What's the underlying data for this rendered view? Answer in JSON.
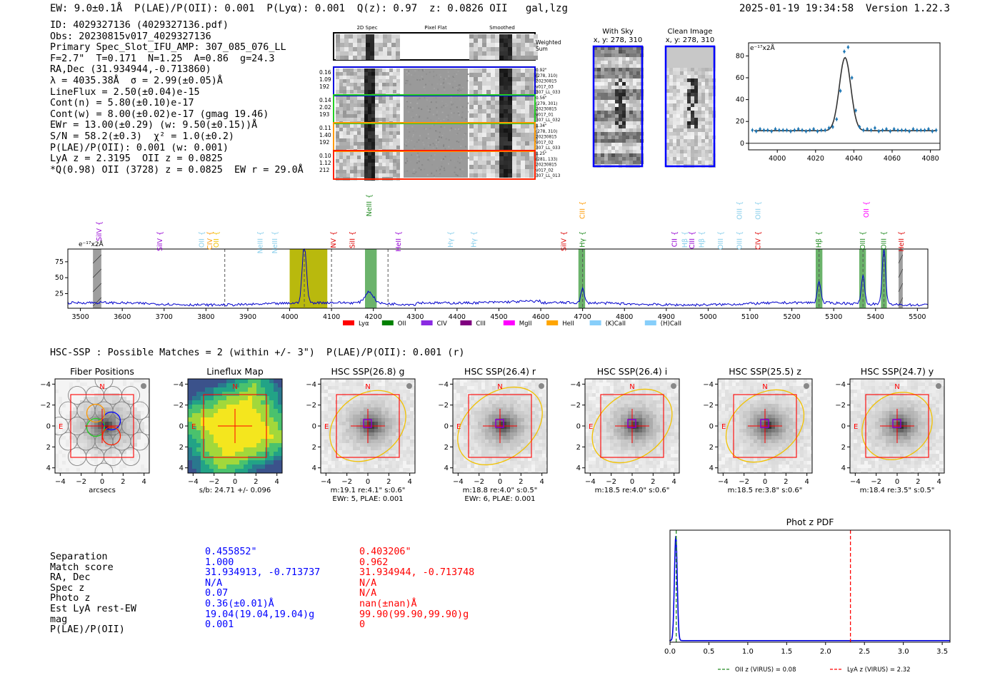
{
  "header": {
    "left": "EW: 9.0±0.1Å  P(LAE)/P(OII): 0.001  P(Lyα): 0.001  Q(z): 0.97  z: 0.0826 OII   gal,lzg",
    "right": "2025-01-19 19:34:58  Version 1.22.3"
  },
  "info_lines": [
    "ID: 4029327136 (4029327136.pdf)",
    "Obs: 20230815v017_4029327136",
    "Primary Spec_Slot_IFU_AMP: 307_085_076_LL",
    "F=2.7\"  T=0.171  N=1.25  A=0.86  g=24.3",
    "RA,Dec (31.934944,-0.713860)",
    "λ = 4035.38Å  σ = 2.99(±0.05)Å",
    "LineFlux = 2.50(±0.04)e-15",
    "Cont(n) = 5.80(±0.10)e-17",
    "Cont(w) = 8.00(±0.02)e-17 (gmag 19.46)",
    "EWr = 13.00(±0.29) (w: 9.50(±0.15))Å",
    "S/N = 58.2(±0.3)  χ² = 1.0(±0.2)",
    "P(LAE)/P(OII): 0.001 (w: 0.001)",
    "LyA z = 2.3195  OII z = 0.0825",
    "*Q(0.98) OII (3728) z = 0.0825  EW r = 29.0Å"
  ],
  "spec_strip": {
    "col_titles": [
      "2D Spec",
      "Pixel Flat",
      "Smoothed"
    ],
    "weighted_label": "Weighted Sum",
    "rows": [
      {
        "left": [
          "0.16",
          "1.09",
          "192"
        ],
        "right": [
          "0.92\"",
          "(278, 310)",
          "20230815",
          "v017_03",
          "307_LL_033"
        ],
        "color": "#0000dd"
      },
      {
        "left": [
          "0.14",
          "2.02",
          "193"
        ],
        "right": [
          "0.56\"",
          "(279, 301)",
          "20230815",
          "v017_01",
          "307_LL_032"
        ],
        "color": "#22cc22"
      },
      {
        "left": [
          "0.11",
          "1.40",
          "192"
        ],
        "right": [
          "1.34\"",
          "(278, 310)",
          "20230815",
          "v017_02",
          "307_LL_033"
        ],
        "color": "#ff9900"
      },
      {
        "left": [
          "0.10",
          "1.12",
          "212"
        ],
        "right": [
          "1.25\"",
          "(281, 133)",
          "20230815",
          "v017_02",
          "307_LL_013"
        ],
        "color": "#ff2200"
      }
    ]
  },
  "cutouts": {
    "sky_title": "With Sky",
    "sky_coords": "x, y: 278, 310",
    "clean_title": "Clean Image",
    "clean_coords": "x, y: 278, 310"
  },
  "colors": {
    "blue": "#0000ff",
    "red": "#ff0000",
    "green": "#228b22",
    "olive": "#b5b500",
    "gold": "#f2c200",
    "fit": "#333333",
    "points": "#1f77b4"
  },
  "chart_data": [
    {
      "id": "line_fit",
      "type": "scatter",
      "title": "",
      "ylabel": "e⁻¹⁷x2Å",
      "xlim": [
        3985,
        4085
      ],
      "ylim": [
        -6,
        92
      ],
      "xticks": [
        4000,
        4020,
        4040,
        4060,
        4080
      ],
      "yticks": [
        0,
        20,
        40,
        60,
        80
      ],
      "fit": {
        "center": 4035.4,
        "sigma": 2.99,
        "amp": 67,
        "cont": 11.5
      },
      "x": [
        3987,
        3989,
        3991,
        3993,
        3995,
        3997,
        3999,
        4001,
        4003,
        4005,
        4007,
        4009,
        4011,
        4013,
        4015,
        4017,
        4019,
        4021,
        4023,
        4025,
        4027,
        4029,
        4031,
        4033,
        4035,
        4037,
        4039,
        4041,
        4043,
        4045,
        4047,
        4049,
        4051,
        4053,
        4055,
        4057,
        4059,
        4061,
        4063,
        4065,
        4067,
        4069,
        4071,
        4073,
        4075,
        4077,
        4079,
        4081,
        4083
      ],
      "y": [
        12,
        11,
        13,
        12,
        12,
        11,
        13,
        12,
        12,
        12,
        11,
        12,
        13,
        12,
        11,
        12,
        13,
        11,
        12,
        12,
        14,
        15,
        22,
        48,
        84,
        88,
        60,
        30,
        15,
        12,
        13,
        12,
        14,
        11,
        12,
        13,
        11,
        13,
        12,
        12,
        12,
        11,
        13,
        12,
        12,
        12,
        13,
        11,
        12
      ]
    },
    {
      "id": "full_spectrum",
      "type": "line",
      "ylabel": "e⁻¹⁷x2Å",
      "xlim": [
        3470,
        5525
      ],
      "ylim": [
        2,
        95
      ],
      "xticks": [
        3500,
        3600,
        3700,
        3800,
        3900,
        4000,
        4100,
        4200,
        4300,
        4400,
        4500,
        4600,
        4700,
        4800,
        4900,
        5000,
        5100,
        5200,
        5300,
        5400,
        5500
      ],
      "yticks": [
        25,
        50,
        75
      ],
      "baseline": 9,
      "peaks": [
        {
          "x": 4035,
          "h": 92,
          "w": 5
        },
        {
          "x": 4190,
          "h": 18,
          "w": 10
        },
        {
          "x": 4700,
          "h": 22,
          "w": 4
        },
        {
          "x": 5265,
          "h": 35,
          "w": 4
        },
        {
          "x": 5370,
          "h": 45,
          "w": 4
        },
        {
          "x": 5420,
          "h": 90,
          "w": 4
        }
      ],
      "bands": [
        {
          "x0": 4000,
          "x1": 4090,
          "color": "olive"
        },
        {
          "x0": 4180,
          "x1": 4208,
          "color": "green"
        },
        {
          "x0": 4690,
          "x1": 4706,
          "color": "green"
        },
        {
          "x0": 5257,
          "x1": 5273,
          "color": "green"
        },
        {
          "x0": 5361,
          "x1": 5377,
          "color": "green"
        },
        {
          "x0": 5413,
          "x1": 5427,
          "color": "green"
        },
        {
          "x0": 3530,
          "x1": 3550,
          "color": "gray"
        },
        {
          "x0": 5455,
          "x1": 5465,
          "color": "gray"
        }
      ],
      "dashes": [
        3845,
        4035,
        4100,
        4235,
        4700,
        5265,
        5370,
        5420
      ],
      "line_labels": [
        {
          "x": 3545,
          "t": "SiIV",
          "c": "#9400d3",
          "lvl": 0
        },
        {
          "x": 3690,
          "t": "SiIV",
          "c": "#9400d3",
          "lvl": 1
        },
        {
          "x": 3790,
          "t": "OII",
          "c": "#87ceeb",
          "lvl": 1
        },
        {
          "x": 3810,
          "t": "CIV",
          "c": "#ff9900",
          "lvl": 1
        },
        {
          "x": 3825,
          "t": "OII",
          "c": "#f2c200",
          "lvl": 1
        },
        {
          "x": 3930,
          "t": "NeIII",
          "c": "#87ceeb",
          "lvl": 1
        },
        {
          "x": 3965,
          "t": "NeIII",
          "c": "#87ceeb",
          "lvl": 1
        },
        {
          "x": 4105,
          "t": "NV",
          "c": "#dd0000",
          "lvl": 1
        },
        {
          "x": 4150,
          "t": "SiII",
          "c": "#dd0000",
          "lvl": 1
        },
        {
          "x": 4190,
          "t": "NeIII",
          "c": "#228b22",
          "lvl": 3
        },
        {
          "x": 4260,
          "t": "HeII",
          "c": "#9400d3",
          "lvl": 1
        },
        {
          "x": 4385,
          "t": "Hγ",
          "c": "#87ceeb",
          "lvl": 1
        },
        {
          "x": 4440,
          "t": "Hγ",
          "c": "#87ceeb",
          "lvl": 1
        },
        {
          "x": 4655,
          "t": "SiIV",
          "c": "#dd0000",
          "lvl": 1
        },
        {
          "x": 4700,
          "t": "Hγ",
          "c": "#228b22",
          "lvl": 1
        },
        {
          "x": 4700,
          "t": "CIII",
          "c": "#ff9900",
          "lvl": 2
        },
        {
          "x": 4920,
          "t": "CII",
          "c": "#9400d3",
          "lvl": 1
        },
        {
          "x": 4945,
          "t": "Hβ",
          "c": "#87ceeb",
          "lvl": 1
        },
        {
          "x": 4962,
          "t": "CIII",
          "c": "#9400d3",
          "lvl": 1
        },
        {
          "x": 4985,
          "t": "Hβ",
          "c": "#87ceeb",
          "lvl": 1
        },
        {
          "x": 5030,
          "t": "OIII",
          "c": "#87ceeb",
          "lvl": 1
        },
        {
          "x": 5075,
          "t": "OIII",
          "c": "#87ceeb",
          "lvl": 1
        },
        {
          "x": 5075,
          "t": "OIII",
          "c": "#87ceeb",
          "lvl": 2
        },
        {
          "x": 5120,
          "t": "OIII",
          "c": "#87ceeb",
          "lvl": 2
        },
        {
          "x": 5120,
          "t": "CIV",
          "c": "#dd0000",
          "lvl": 1
        },
        {
          "x": 5265,
          "t": "Hβ",
          "c": "#228b22",
          "lvl": 1
        },
        {
          "x": 5370,
          "t": "OIII",
          "c": "#228b22",
          "lvl": 1
        },
        {
          "x": 5378,
          "t": "OII",
          "c": "#ff00ff",
          "lvl": 2
        },
        {
          "x": 5420,
          "t": "OIII",
          "c": "#228b22",
          "lvl": 1
        },
        {
          "x": 5462,
          "t": "HeII",
          "c": "#dd0000",
          "lvl": 1
        }
      ],
      "legend": [
        {
          "name": "Lyα",
          "color": "#ff0000"
        },
        {
          "name": "OII",
          "color": "#008000"
        },
        {
          "name": "CIV",
          "color": "#8a2be2"
        },
        {
          "name": "CIII",
          "color": "#800080"
        },
        {
          "name": "MgII",
          "color": "#ff00ff"
        },
        {
          "name": "HeII",
          "color": "#ffa500"
        },
        {
          "name": "(K)CaII",
          "color": "#87cefa"
        },
        {
          "name": "(H)CaII",
          "color": "#87cefa"
        }
      ]
    },
    {
      "id": "photz_pdf",
      "type": "line",
      "title": "Phot z PDF",
      "xlim": [
        0,
        3.6
      ],
      "xticks": [
        0.0,
        0.5,
        1.0,
        1.5,
        2.0,
        2.5,
        3.0,
        3.5
      ],
      "ylim": [
        0,
        1.05
      ],
      "vlines": [
        {
          "x": 0.08,
          "color": "#228b22",
          "label": "OII z (VIRUS) = 0.08"
        },
        {
          "x": 2.32,
          "color": "#ff0000",
          "label": "LyA z (VIRUS) = 2.32"
        }
      ]
    }
  ],
  "hsc": {
    "section_title": "HSC-SSP : Possible Matches = 2 (within +/- 3\")  P(LAE)/P(OII): 0.001 (r)",
    "axis_ticks": [
      "−4",
      "−2",
      "0",
      "2",
      "4"
    ],
    "y_ticks": [
      "4",
      "2",
      "0",
      "−2",
      "−4"
    ],
    "panels": [
      {
        "title": "Fiber Positions",
        "cap1": "arcsecs",
        "cap2": ""
      },
      {
        "title": "Lineflux Map",
        "cap1": "s/b: 24.71 +/- 0.096",
        "cap2": ""
      },
      {
        "title": "HSC SSP(26.8) g",
        "cap1": "m:19.1  re:4.1\"  s:0.6\"",
        "cap2": "EWr: 5, PLAE: 0.001"
      },
      {
        "title": "HSC SSP(26.4) r",
        "cap1": "m:18.8  re:4.0\"  s:0.5\"",
        "cap2": "EWr: 6, PLAE: 0.001"
      },
      {
        "title": "HSC SSP(26.4) i",
        "cap1": "m:18.5  re:4.0\"  s:0.6\"",
        "cap2": ""
      },
      {
        "title": "HSC SSP(25.5) z",
        "cap1": "m:18.5  re:3.8\"  s:0.6\"",
        "cap2": ""
      },
      {
        "title": "HSC SSP(24.7) y",
        "cap1": "m:18.4  re:3.5\"  s:0.5\"",
        "cap2": ""
      }
    ],
    "north": "N",
    "east": "E"
  },
  "matches": {
    "labels": [
      "Separation",
      "Match score",
      "RA, Dec",
      "Spec z",
      "Photo z",
      "Est LyA rest-EW",
      "mag",
      "P(LAE)/P(OII)"
    ],
    "col1": [
      "0.455852\"",
      "1.000",
      "31.934913, -0.713737",
      "N/A",
      "0.07",
      "0.36(±0.01)Å",
      "19.04(19.04,19.04)g",
      "0.001"
    ],
    "col2": [
      "0.403206\"",
      "0.962",
      "31.934944, -0.713748",
      "N/A",
      "N/A",
      "nan(±nan)Å",
      "99.90(99.90,99.90)g",
      "0"
    ]
  }
}
